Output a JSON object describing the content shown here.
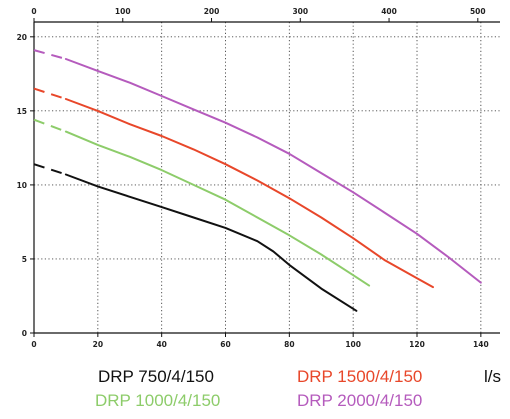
{
  "chart_data": {
    "type": "line",
    "x_bottom": {
      "ticks": [
        0,
        20,
        40,
        60,
        80,
        100,
        120,
        140
      ],
      "range": [
        0,
        146
      ],
      "unit": "l/s"
    },
    "x_top": {
      "ticks": [
        0,
        100,
        200,
        300,
        400,
        500
      ],
      "range": [
        0,
        525
      ]
    },
    "y": {
      "ticks": [
        0,
        5,
        10,
        15,
        20
      ],
      "range": [
        0,
        21
      ]
    },
    "grid": true,
    "series": [
      {
        "name": "DRP 750/4/150",
        "color": "#111111",
        "dashed": [
          [
            0,
            11.4
          ],
          [
            10,
            10.7
          ]
        ],
        "points": [
          [
            10,
            10.7
          ],
          [
            20,
            9.9
          ],
          [
            30,
            9.2
          ],
          [
            40,
            8.5
          ],
          [
            50,
            7.8
          ],
          [
            60,
            7.1
          ],
          [
            70,
            6.2
          ],
          [
            75,
            5.5
          ],
          [
            80,
            4.6
          ],
          [
            90,
            3.0
          ],
          [
            101,
            1.5
          ]
        ]
      },
      {
        "name": "DRP 1000/4/150",
        "color": "#8dcc6a",
        "dashed": [
          [
            0,
            14.4
          ],
          [
            10,
            13.6
          ]
        ],
        "points": [
          [
            10,
            13.6
          ],
          [
            20,
            12.7
          ],
          [
            30,
            11.9
          ],
          [
            40,
            11.0
          ],
          [
            50,
            10.0
          ],
          [
            60,
            9.0
          ],
          [
            70,
            7.8
          ],
          [
            80,
            6.6
          ],
          [
            90,
            5.3
          ],
          [
            100,
            3.9
          ],
          [
            105,
            3.2
          ]
        ]
      },
      {
        "name": "DRP 1500/4/150",
        "color": "#e8472a",
        "dashed": [
          [
            0,
            16.5
          ],
          [
            10,
            15.8
          ]
        ],
        "points": [
          [
            10,
            15.8
          ],
          [
            20,
            15.0
          ],
          [
            30,
            14.1
          ],
          [
            40,
            13.3
          ],
          [
            50,
            12.4
          ],
          [
            60,
            11.4
          ],
          [
            70,
            10.3
          ],
          [
            80,
            9.1
          ],
          [
            90,
            7.8
          ],
          [
            100,
            6.4
          ],
          [
            110,
            4.9
          ],
          [
            120,
            3.7
          ],
          [
            125,
            3.1
          ]
        ]
      },
      {
        "name": "DRP 2000/4/150",
        "color": "#b55bbd",
        "dashed": [
          [
            0,
            19.1
          ],
          [
            10,
            18.5
          ]
        ],
        "points": [
          [
            10,
            18.5
          ],
          [
            20,
            17.7
          ],
          [
            30,
            16.9
          ],
          [
            40,
            16.0
          ],
          [
            50,
            15.1
          ],
          [
            60,
            14.2
          ],
          [
            70,
            13.2
          ],
          [
            80,
            12.1
          ],
          [
            90,
            10.8
          ],
          [
            100,
            9.5
          ],
          [
            110,
            8.1
          ],
          [
            120,
            6.7
          ],
          [
            130,
            5.1
          ],
          [
            140,
            3.4
          ]
        ]
      }
    ]
  }
}
